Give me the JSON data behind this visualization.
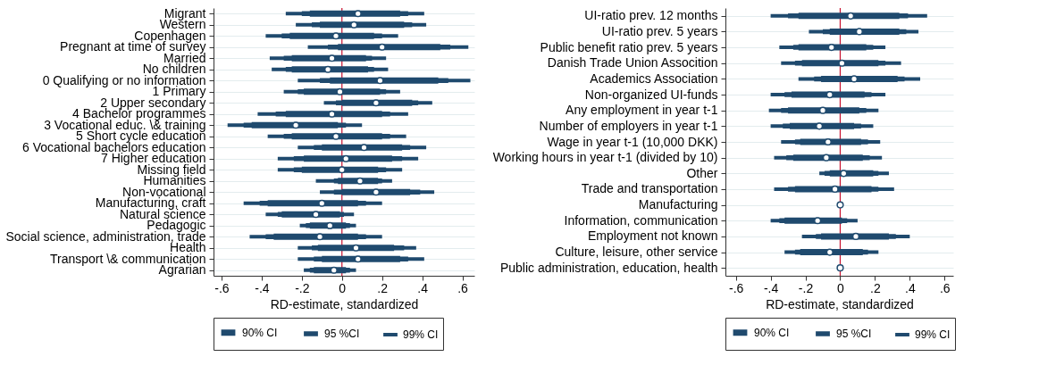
{
  "chart_data": [
    {
      "type": "bar",
      "orientation": "horizontal",
      "xlabel": "RD-estimate, standardized",
      "categories": [
        "Migrant",
        "Western",
        "Copenhagen",
        "Pregnant at time of survey",
        "Married",
        "No children",
        "0 Qualifying or no information",
        "1 Primary",
        "2 Upper secondary",
        "4 Bachelor programmes",
        "3 Vocational educ. \\& training",
        "5 Short cycle education",
        "6 Vocational bachelors education",
        "7 Higher education",
        "Missing field",
        "Humanities",
        "Non-vocational",
        "Manufacturing, craft",
        "Natural science",
        "Pedagogic",
        "Social science, administration, trade",
        "Health",
        "Transport \\& communication",
        "Agrarian"
      ],
      "series": [
        {
          "name": "90% CI",
          "type": "bar",
          "color": "#1f4a6e",
          "base": [
            -0.16,
            -0.11,
            -0.26,
            -0.02,
            -0.25,
            -0.25,
            -0.06,
            -0.19,
            0,
            -0.28,
            -0.45,
            -0.25,
            -0.1,
            -0.19,
            -0.2,
            -0.02,
            0,
            -0.37,
            -0.3,
            -0.16,
            -0.34,
            -0.12,
            -0.1,
            -0.14
          ],
          "values": [
            0.45,
            0.42,
            0.42,
            0.51,
            0.37,
            0.38,
            0.54,
            0.38,
            0.35,
            0.48,
            0.43,
            0.45,
            0.4,
            0.44,
            0.38,
            0.2,
            0.34,
            0.45,
            0.29,
            0.18,
            0.42,
            0.38,
            0.39,
            0.16
          ]
        },
        {
          "name": "95 %CI",
          "type": "bar",
          "color": "#1f4a6e",
          "base": [
            -0.2,
            -0.15,
            -0.3,
            -0.07,
            -0.29,
            -0.28,
            -0.11,
            -0.22,
            -0.03,
            -0.33,
            -0.49,
            -0.29,
            -0.14,
            -0.24,
            -0.24,
            -0.04,
            -0.04,
            -0.41,
            -0.32,
            -0.18,
            -0.38,
            -0.15,
            -0.14,
            -0.16
          ],
          "values": [
            0.53,
            0.5,
            0.5,
            0.61,
            0.44,
            0.44,
            0.64,
            0.44,
            0.41,
            0.57,
            0.51,
            0.53,
            0.48,
            0.54,
            0.46,
            0.24,
            0.43,
            0.53,
            0.33,
            0.22,
            0.5,
            0.46,
            0.47,
            0.2
          ]
        },
        {
          "name": "99% CI",
          "type": "bar",
          "color": "#1f4a6e",
          "base": [
            -0.28,
            -0.23,
            -0.38,
            -0.17,
            -0.36,
            -0.35,
            -0.22,
            -0.29,
            -0.09,
            -0.42,
            -0.57,
            -0.37,
            -0.22,
            -0.32,
            -0.32,
            -0.13,
            -0.11,
            -0.49,
            -0.38,
            -0.21,
            -0.46,
            -0.22,
            -0.22,
            -0.19
          ],
          "values": [
            0.69,
            0.65,
            0.66,
            0.8,
            0.58,
            0.58,
            0.86,
            0.58,
            0.54,
            0.75,
            0.67,
            0.69,
            0.64,
            0.7,
            0.62,
            0.38,
            0.57,
            0.69,
            0.44,
            0.28,
            0.66,
            0.59,
            0.63,
            0.26
          ]
        },
        {
          "type": "scatter",
          "color": "#ffffff",
          "marker": "circle",
          "values": [
            0.08,
            0.06,
            -0.03,
            0.2,
            -0.05,
            -0.07,
            0.19,
            -0.01,
            0.17,
            -0.05,
            -0.23,
            -0.03,
            0.11,
            0.02,
            0,
            0.09,
            0.17,
            -0.1,
            -0.13,
            -0.06,
            -0.11,
            0.07,
            0.08,
            -0.04
          ]
        }
      ],
      "xlim": [
        -0.64,
        0.66
      ],
      "xticks": [
        {
          "value": -0.6,
          "label": "-.6"
        },
        {
          "value": -0.4,
          "label": "-.4"
        },
        {
          "value": -0.2,
          "label": "-.2"
        },
        0,
        {
          "value": 0.2,
          "label": ".2"
        },
        {
          "value": 0.4,
          "label": ".4"
        },
        {
          "value": 0.6,
          "label": ".6"
        }
      ],
      "ref_lines": [
        {
          "axis": "x",
          "value": 0,
          "color": "#c8102e"
        }
      ],
      "grid": "y",
      "legend": "bottom"
    },
    {
      "type": "bar",
      "orientation": "horizontal",
      "xlabel": "RD-estimate, standardized",
      "categories": [
        "UI-ratio prev. 12 months",
        "UI-ratio prev. 5 years",
        "Public benefit ratio prev. 5 years",
        "Danish Trade Union Assocition",
        "Academics Association",
        "Non-organized UI-funds",
        "Any employment in year t-1",
        "Number of employers in year t-1",
        "Wage in year t-1 (10,000 DKK)",
        "Working hours in year t-1 (divided by 10)",
        "Other",
        "Trade and transportation",
        "Manufacturing",
        "Information, communication",
        "Employment not known",
        "Culture, leisure, other service",
        "Public administration, education, health"
      ],
      "series": [
        {
          "name": "90% CI",
          "type": "bar",
          "color": "#1f4a6e",
          "base": [
            -0.24,
            -0.06,
            -0.24,
            -0.22,
            -0.11,
            -0.28,
            -0.3,
            -0.29,
            -0.23,
            -0.27,
            -0.06,
            -0.26,
            null,
            -0.32,
            -0.11,
            -0.23,
            null
          ],
          "values": [
            0.58,
            0.4,
            0.39,
            0.44,
            0.44,
            0.42,
            0.41,
            0.37,
            0.35,
            0.4,
            0.25,
            0.44,
            null,
            0.33,
            0.39,
            0.36,
            null
          ]
        },
        {
          "name": "95 %CI",
          "type": "bar",
          "color": "#1f4a6e",
          "base": [
            -0.3,
            -0.1,
            -0.27,
            -0.26,
            -0.15,
            -0.32,
            -0.34,
            -0.33,
            -0.26,
            -0.31,
            -0.09,
            -0.3,
            null,
            -0.35,
            -0.14,
            -0.26,
            null
          ],
          "values": [
            0.69,
            0.48,
            0.46,
            0.52,
            0.52,
            0.5,
            0.49,
            0.45,
            0.42,
            0.48,
            0.31,
            0.52,
            null,
            0.39,
            0.46,
            0.42,
            null
          ]
        },
        {
          "name": "99% CI",
          "type": "bar",
          "color": "#1f4a6e",
          "base": [
            -0.4,
            -0.18,
            -0.35,
            -0.34,
            -0.24,
            -0.4,
            -0.41,
            -0.4,
            -0.34,
            -0.38,
            -0.12,
            -0.38,
            null,
            -0.4,
            -0.22,
            -0.32,
            null
          ],
          "values": [
            0.9,
            0.63,
            0.61,
            0.69,
            0.7,
            0.66,
            0.63,
            0.59,
            0.57,
            0.62,
            0.4,
            0.69,
            null,
            0.5,
            0.62,
            0.54,
            null
          ]
        },
        {
          "type": "scatter",
          "color": "#ffffff",
          "marker": "circle",
          "values": [
            0.06,
            0.11,
            -0.05,
            0.01,
            0.08,
            -0.06,
            -0.1,
            -0.12,
            -0.07,
            -0.08,
            0.02,
            -0.03,
            0,
            -0.13,
            0.09,
            -0.06,
            0
          ]
        }
      ],
      "xlim": [
        -0.66,
        0.65
      ],
      "xticks": [
        {
          "value": -0.6,
          "label": "-.6"
        },
        {
          "value": -0.4,
          "label": "-.4"
        },
        {
          "value": -0.2,
          "label": "-.2"
        },
        0,
        {
          "value": 0.2,
          "label": ".2"
        },
        {
          "value": 0.4,
          "label": ".4"
        },
        {
          "value": 0.6,
          "label": ".6"
        }
      ],
      "ref_lines": [
        {
          "axis": "x",
          "value": 0,
          "color": "#c8102e"
        }
      ],
      "grid": "y",
      "legend": "bottom"
    }
  ]
}
